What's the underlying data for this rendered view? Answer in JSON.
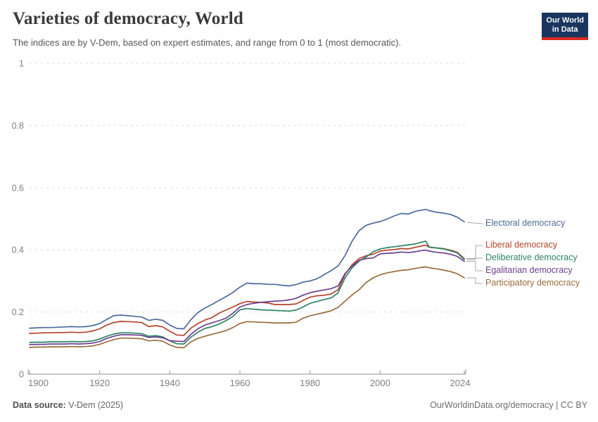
{
  "header": {
    "title": "Varieties of democracy, World",
    "subtitle": "The indices are by V-Dem, based on expert estimates, and range from 0 to 1 (most democratic).",
    "logo_line1": "Our World",
    "logo_line2": "in Data"
  },
  "footer": {
    "source_label": "Data source:",
    "source_value": "V-Dem (2025)",
    "credit": "OurWorldinData.org/democracy | CC BY"
  },
  "colors": {
    "logo_bg": "#1a355e",
    "logo_bar": "#dc2a20",
    "grid": "#dcdcdc",
    "axis": "#8f8f8f",
    "tick_label": "#7f7f7f",
    "connector": "#a9a9a9"
  },
  "chart_data": {
    "type": "line",
    "title": "Varieties of democracy, World",
    "xlabel": "",
    "ylabel": "",
    "xlim": [
      1900,
      2024
    ],
    "ylim": [
      0,
      1
    ],
    "yticks": [
      0,
      0.2,
      0.4,
      0.6,
      0.8,
      1
    ],
    "xticks": [
      1900,
      1920,
      1940,
      1960,
      1980,
      2000,
      2024
    ],
    "grid": "horizontal-dashed",
    "legend_position": "right-of-line-ends",
    "x": [
      1900,
      1902,
      1904,
      1906,
      1908,
      1910,
      1912,
      1914,
      1916,
      1918,
      1920,
      1922,
      1924,
      1926,
      1928,
      1930,
      1932,
      1934,
      1936,
      1938,
      1940,
      1942,
      1944,
      1946,
      1948,
      1950,
      1952,
      1954,
      1956,
      1958,
      1960,
      1962,
      1964,
      1966,
      1968,
      1970,
      1972,
      1974,
      1976,
      1978,
      1980,
      1982,
      1984,
      1986,
      1988,
      1990,
      1992,
      1994,
      1996,
      1998,
      2000,
      2002,
      2004,
      2006,
      2008,
      2010,
      2012,
      2013,
      2014,
      2016,
      2018,
      2020,
      2022,
      2024
    ],
    "series": [
      {
        "name": "Electoral democracy",
        "color": "#4C6A9C",
        "values": [
          0.148,
          0.149,
          0.15,
          0.15,
          0.151,
          0.152,
          0.153,
          0.152,
          0.153,
          0.156,
          0.163,
          0.176,
          0.188,
          0.19,
          0.188,
          0.186,
          0.184,
          0.173,
          0.177,
          0.173,
          0.158,
          0.147,
          0.146,
          0.175,
          0.198,
          0.213,
          0.224,
          0.237,
          0.249,
          0.263,
          0.28,
          0.293,
          0.291,
          0.291,
          0.289,
          0.289,
          0.286,
          0.284,
          0.288,
          0.296,
          0.3,
          0.307,
          0.32,
          0.333,
          0.348,
          0.382,
          0.428,
          0.462,
          0.479,
          0.486,
          0.491,
          0.499,
          0.509,
          0.517,
          0.515,
          0.524,
          0.528,
          0.53,
          0.526,
          0.521,
          0.518,
          0.514,
          0.505,
          0.49
        ]
      },
      {
        "name": "Liberal democracy",
        "color": "#B5432B",
        "values": [
          0.131,
          0.132,
          0.133,
          0.133,
          0.134,
          0.134,
          0.135,
          0.134,
          0.135,
          0.139,
          0.146,
          0.158,
          0.166,
          0.17,
          0.169,
          0.168,
          0.166,
          0.153,
          0.156,
          0.152,
          0.138,
          0.126,
          0.125,
          0.148,
          0.163,
          0.174,
          0.182,
          0.196,
          0.206,
          0.216,
          0.227,
          0.234,
          0.232,
          0.231,
          0.229,
          0.224,
          0.224,
          0.224,
          0.226,
          0.237,
          0.248,
          0.252,
          0.254,
          0.258,
          0.272,
          0.321,
          0.352,
          0.372,
          0.381,
          0.386,
          0.396,
          0.399,
          0.401,
          0.404,
          0.403,
          0.408,
          0.413,
          0.415,
          0.408,
          0.406,
          0.404,
          0.399,
          0.392,
          0.372
        ]
      },
      {
        "name": "Deliberative democracy",
        "color": "#2C8465",
        "values": [
          0.102,
          0.103,
          0.103,
          0.104,
          0.104,
          0.104,
          0.105,
          0.104,
          0.105,
          0.107,
          0.113,
          0.122,
          0.129,
          0.133,
          0.133,
          0.132,
          0.13,
          0.122,
          0.124,
          0.12,
          0.107,
          0.098,
          0.097,
          0.119,
          0.135,
          0.147,
          0.153,
          0.161,
          0.172,
          0.186,
          0.207,
          0.211,
          0.209,
          0.207,
          0.206,
          0.205,
          0.204,
          0.203,
          0.206,
          0.216,
          0.228,
          0.234,
          0.24,
          0.245,
          0.262,
          0.31,
          0.342,
          0.364,
          0.377,
          0.394,
          0.403,
          0.407,
          0.41,
          0.413,
          0.416,
          0.419,
          0.425,
          0.428,
          0.409,
          0.406,
          0.403,
          0.397,
          0.39,
          0.369
        ]
      },
      {
        "name": "Egalitarian democracy",
        "color": "#6D3E91",
        "values": [
          0.095,
          0.096,
          0.096,
          0.097,
          0.097,
          0.097,
          0.098,
          0.097,
          0.098,
          0.1,
          0.105,
          0.115,
          0.122,
          0.127,
          0.127,
          0.126,
          0.125,
          0.118,
          0.12,
          0.117,
          0.108,
          0.106,
          0.105,
          0.128,
          0.146,
          0.158,
          0.165,
          0.172,
          0.18,
          0.196,
          0.216,
          0.224,
          0.228,
          0.231,
          0.233,
          0.235,
          0.236,
          0.239,
          0.244,
          0.254,
          0.262,
          0.267,
          0.271,
          0.275,
          0.284,
          0.324,
          0.348,
          0.366,
          0.372,
          0.374,
          0.387,
          0.389,
          0.39,
          0.393,
          0.391,
          0.394,
          0.398,
          0.399,
          0.396,
          0.392,
          0.39,
          0.386,
          0.379,
          0.363
        ]
      },
      {
        "name": "Participatory democracy",
        "color": "#996D39",
        "values": [
          0.086,
          0.087,
          0.087,
          0.088,
          0.088,
          0.088,
          0.089,
          0.088,
          0.089,
          0.091,
          0.096,
          0.104,
          0.111,
          0.116,
          0.116,
          0.115,
          0.114,
          0.107,
          0.109,
          0.106,
          0.094,
          0.086,
          0.085,
          0.104,
          0.115,
          0.122,
          0.128,
          0.134,
          0.14,
          0.15,
          0.163,
          0.169,
          0.168,
          0.167,
          0.166,
          0.165,
          0.165,
          0.165,
          0.167,
          0.18,
          0.188,
          0.193,
          0.198,
          0.204,
          0.215,
          0.235,
          0.255,
          0.272,
          0.295,
          0.31,
          0.32,
          0.326,
          0.33,
          0.334,
          0.336,
          0.34,
          0.344,
          0.345,
          0.342,
          0.339,
          0.335,
          0.33,
          0.323,
          0.31
        ]
      }
    ]
  }
}
